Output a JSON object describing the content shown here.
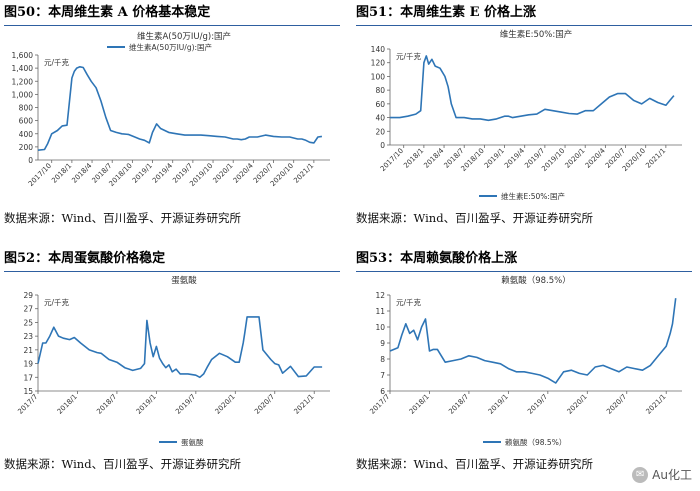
{
  "source_label": "数据来源：Wind、百川盈孚、开源证券研究所",
  "watermark": {
    "text": "Au化工",
    "icon": "wechat-bubble-icon"
  },
  "line_color": "#2e75b6",
  "panels": [
    {
      "fig": "图50：",
      "title": "本周维生素 A 价格基本稳定"
    },
    {
      "fig": "图51：",
      "title": "本周维生素 E 价格上涨"
    },
    {
      "fig": "图52：",
      "title": "本周蛋氨酸价格稳定"
    },
    {
      "fig": "图53：",
      "title": "本周赖氨酸价格上涨"
    }
  ],
  "chart_data": [
    {
      "type": "line",
      "title": "维生素A(50万IU/g):国产",
      "ylabel": "元/千克",
      "ylim": [
        0,
        1600
      ],
      "yticks": [
        0,
        200,
        400,
        600,
        800,
        1000,
        1200,
        1400,
        1600
      ],
      "ytick_labels": [
        "0",
        "200",
        "400",
        "600",
        "800",
        "1,000",
        "1,200",
        "1,400",
        "1,600"
      ],
      "xlim": [
        2017.58,
        2021.2
      ],
      "xticks": [
        2017.5,
        2017.75,
        2018.0,
        2018.25,
        2018.5,
        2018.75,
        2019.0,
        2019.25,
        2019.5,
        2019.75,
        2020.0,
        2020.25,
        2020.5,
        2020.75,
        2021.0
      ],
      "xtick_labels": [
        "2017/7",
        "2017/10",
        "2018/1",
        "2018/4",
        "2018/7",
        "2018/10",
        "2019/1",
        "2019/4",
        "2019/7",
        "2019/10",
        "2020/1",
        "2020/4",
        "2020/7",
        "2020/10",
        "2021/1"
      ],
      "legend": [
        "维生素A(50万IU/g):国产"
      ],
      "legend_position": "top-center",
      "series": [
        {
          "name": "维生素A(50万IU/g):国产",
          "x": [
            2017.58,
            2017.66,
            2017.7,
            2017.75,
            2017.82,
            2017.88,
            2017.94,
            2018.0,
            2018.03,
            2018.06,
            2018.1,
            2018.14,
            2018.19,
            2018.24,
            2018.3,
            2018.36,
            2018.42,
            2018.48,
            2018.55,
            2018.62,
            2018.7,
            2018.78,
            2018.84,
            2018.9,
            2018.96,
            2019.0,
            2019.05,
            2019.1,
            2019.2,
            2019.3,
            2019.4,
            2019.5,
            2019.6,
            2019.7,
            2019.8,
            2019.9,
            2020.0,
            2020.05,
            2020.1,
            2020.15,
            2020.2,
            2020.3,
            2020.4,
            2020.5,
            2020.6,
            2020.7,
            2020.8,
            2020.85,
            2020.9,
            2020.95,
            2021.0,
            2021.05,
            2021.1
          ],
          "y": [
            150,
            160,
            250,
            400,
            450,
            520,
            530,
            1250,
            1350,
            1400,
            1420,
            1410,
            1300,
            1200,
            1100,
            900,
            650,
            450,
            420,
            400,
            390,
            350,
            320,
            300,
            260,
            420,
            550,
            480,
            420,
            400,
            380,
            380,
            380,
            370,
            360,
            350,
            320,
            320,
            310,
            320,
            350,
            350,
            380,
            360,
            350,
            350,
            320,
            320,
            300,
            270,
            260,
            350,
            360
          ]
        }
      ]
    },
    {
      "type": "line",
      "title": "维生素E:50%:国产",
      "ylabel": "元/千克",
      "ylim": [
        0,
        140
      ],
      "yticks": [
        0,
        20,
        40,
        60,
        80,
        100,
        120,
        140
      ],
      "ytick_labels": [
        "0",
        "20",
        "40",
        "60",
        "80",
        "100",
        "120",
        "140"
      ],
      "xlim": [
        2017.58,
        2021.2
      ],
      "xticks": [
        2017.5,
        2017.75,
        2018.0,
        2018.25,
        2018.5,
        2018.75,
        2019.0,
        2019.25,
        2019.5,
        2019.75,
        2020.0,
        2020.25,
        2020.5,
        2020.75,
        2021.0
      ],
      "xtick_labels": [
        "2017/7",
        "2017/10",
        "2018/1",
        "2018/4",
        "2018/7",
        "2018/10",
        "2019/1",
        "2019/4",
        "2019/7",
        "2019/10",
        "2020/1",
        "2020/4",
        "2020/7",
        "2020/10",
        "2021/1"
      ],
      "legend": [
        "维生素E:50%:国产"
      ],
      "legend_position": "bottom",
      "series": [
        {
          "name": "维生素E:50%:国产",
          "x": [
            2017.58,
            2017.7,
            2017.8,
            2017.9,
            2017.96,
            2018.0,
            2018.03,
            2018.06,
            2018.1,
            2018.14,
            2018.2,
            2018.26,
            2018.3,
            2018.34,
            2018.4,
            2018.5,
            2018.6,
            2018.7,
            2018.8,
            2018.9,
            2019.0,
            2019.05,
            2019.1,
            2019.2,
            2019.3,
            2019.4,
            2019.5,
            2019.6,
            2019.7,
            2019.8,
            2019.9,
            2020.0,
            2020.1,
            2020.2,
            2020.3,
            2020.4,
            2020.5,
            2020.55,
            2020.6,
            2020.7,
            2020.8,
            2020.9,
            2021.0,
            2021.05,
            2021.1
          ],
          "y": [
            40,
            40,
            42,
            45,
            50,
            120,
            130,
            118,
            125,
            115,
            112,
            100,
            85,
            60,
            40,
            40,
            38,
            38,
            36,
            38,
            42,
            42,
            40,
            42,
            44,
            45,
            52,
            50,
            48,
            46,
            45,
            50,
            50,
            60,
            70,
            75,
            75,
            70,
            65,
            60,
            68,
            62,
            58,
            65,
            72
          ]
        }
      ]
    },
    {
      "type": "line",
      "title": "蛋氨酸",
      "ylabel": "元/千克",
      "ylim": [
        15,
        29
      ],
      "yticks": [
        15,
        17,
        19,
        21,
        23,
        25,
        27,
        29
      ],
      "ytick_labels": [
        "15",
        "17",
        "19",
        "21",
        "23",
        "25",
        "27",
        "29"
      ],
      "xlim": [
        2017.5,
        2021.2
      ],
      "xticks": [
        2017.5,
        2018.0,
        2018.5,
        2019.0,
        2019.5,
        2020.0,
        2020.5,
        2021.0
      ],
      "xtick_labels": [
        "2017/7",
        "2018/1",
        "2018/7",
        "2019/1",
        "2019/7",
        "2020/1",
        "2020/7",
        "2021/1"
      ],
      "legend": [
        "蛋氨酸"
      ],
      "legend_position": "bottom",
      "series": [
        {
          "name": "蛋氨酸",
          "x": [
            2017.5,
            2017.56,
            2017.6,
            2017.65,
            2017.7,
            2017.76,
            2017.82,
            2017.9,
            2017.96,
            2018.04,
            2018.15,
            2018.25,
            2018.3,
            2018.4,
            2018.5,
            2018.6,
            2018.7,
            2018.8,
            2018.85,
            2018.88,
            2018.92,
            2018.96,
            2019.0,
            2019.04,
            2019.08,
            2019.12,
            2019.16,
            2019.2,
            2019.25,
            2019.3,
            2019.4,
            2019.5,
            2019.55,
            2019.6,
            2019.65,
            2019.7,
            2019.8,
            2019.9,
            2020.0,
            2020.05,
            2020.1,
            2020.12,
            2020.15,
            2020.2,
            2020.3,
            2020.35,
            2020.45,
            2020.5,
            2020.55,
            2020.6,
            2020.7,
            2020.8,
            2020.9,
            2021.0,
            2021.1
          ],
          "y": [
            19,
            22,
            22,
            23,
            24.3,
            23,
            22.7,
            22.5,
            22.8,
            22,
            21,
            20.6,
            20.5,
            19.6,
            19.2,
            18.4,
            18,
            18.3,
            19,
            25.3,
            22,
            20,
            21.5,
            19.8,
            19,
            18.4,
            18.8,
            17.8,
            18.2,
            17.5,
            17.5,
            17.3,
            17,
            17.5,
            18.6,
            19.6,
            20.5,
            20,
            19.2,
            19.2,
            22,
            23.5,
            25.8,
            25.8,
            25.8,
            21,
            19.6,
            19,
            18.8,
            17.6,
            18.6,
            17.1,
            17.2,
            18.5,
            18.5
          ]
        }
      ]
    },
    {
      "type": "line",
      "title": "赖氨酸（98.5%）",
      "ylabel": "元/千克",
      "ylim": [
        6,
        12
      ],
      "yticks": [
        6,
        7,
        8,
        9,
        10,
        11,
        12
      ],
      "ytick_labels": [
        "6",
        "7",
        "8",
        "9",
        "10",
        "11",
        "12"
      ],
      "xlim": [
        2017.5,
        2021.2
      ],
      "xticks": [
        2017.5,
        2018.0,
        2018.5,
        2019.0,
        2019.5,
        2020.0,
        2020.5,
        2021.0
      ],
      "xtick_labels": [
        "2017/7",
        "2018/1",
        "2018/7",
        "2019/1",
        "2019/7",
        "2020/1",
        "2020/7",
        "2021/1"
      ],
      "legend": [
        "赖氨酸（98.5%）"
      ],
      "legend_position": "bottom",
      "series": [
        {
          "name": "赖氨酸（98.5%）",
          "x": [
            2017.5,
            2017.6,
            2017.65,
            2017.7,
            2017.75,
            2017.8,
            2017.85,
            2017.9,
            2017.95,
            2018.0,
            2018.05,
            2018.1,
            2018.15,
            2018.2,
            2018.3,
            2018.4,
            2018.5,
            2018.6,
            2018.7,
            2018.8,
            2018.9,
            2019.0,
            2019.1,
            2019.2,
            2019.3,
            2019.4,
            2019.5,
            2019.6,
            2019.7,
            2019.8,
            2019.9,
            2020.0,
            2020.1,
            2020.2,
            2020.3,
            2020.4,
            2020.5,
            2020.6,
            2020.7,
            2020.8,
            2020.9,
            2021.0,
            2021.05,
            2021.08,
            2021.1,
            2021.12
          ],
          "y": [
            8.5,
            8.7,
            9.5,
            10.2,
            9.6,
            9.8,
            9.2,
            10,
            10.5,
            8.5,
            8.6,
            8.6,
            8.2,
            7.8,
            7.9,
            8,
            8.2,
            8.1,
            7.9,
            7.8,
            7.7,
            7.4,
            7.2,
            7.2,
            7.1,
            7,
            6.8,
            6.5,
            7.2,
            7.3,
            7.1,
            7,
            7.5,
            7.6,
            7.4,
            7.2,
            7.5,
            7.4,
            7.3,
            7.6,
            8.2,
            8.8,
            9.6,
            10.2,
            11,
            11.8
          ]
        }
      ]
    }
  ]
}
